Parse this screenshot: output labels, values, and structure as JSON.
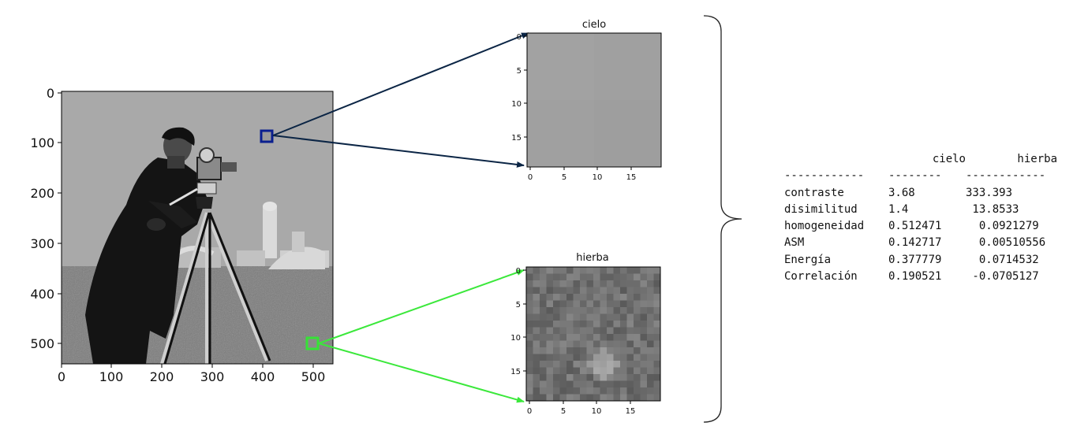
{
  "main_image": {
    "y_ticks": [
      "0",
      "100",
      "200",
      "300",
      "400",
      "500"
    ],
    "x_ticks": [
      "0",
      "100",
      "200",
      "300",
      "400",
      "500"
    ]
  },
  "patches": [
    {
      "title": "cielo",
      "x_ticks": [
        "0",
        "5",
        "10",
        "15"
      ],
      "y_ticks": [
        "0",
        "5",
        "10",
        "15"
      ],
      "marker_color": "#0a1f8f",
      "arrow_color": "#0b2545"
    },
    {
      "title": "hierba",
      "x_ticks": [
        "0",
        "5",
        "10",
        "15"
      ],
      "y_ticks": [
        "0",
        "5",
        "10",
        "15"
      ],
      "marker_color": "#36e236",
      "arrow_color": "#3be83b"
    }
  ],
  "table": {
    "headers": [
      "",
      "cielo",
      "hierba"
    ],
    "separators": [
      "------------",
      "--------",
      "------------"
    ],
    "rows": [
      {
        "label": "contraste",
        "cielo": "3.68",
        "hierba": "333.393"
      },
      {
        "label": "disimilitud",
        "cielo": "1.4",
        "hierba": " 13.8533"
      },
      {
        "label": "homogeneidad",
        "cielo": "0.512471",
        "hierba": "  0.0921279"
      },
      {
        "label": "ASM",
        "cielo": "0.142717",
        "hierba": "  0.00510556"
      },
      {
        "label": "Energía",
        "cielo": "0.377779",
        "hierba": "  0.0714532"
      },
      {
        "label": "Correlación",
        "cielo": "0.190521",
        "hierba": " -0.0705127"
      }
    ]
  }
}
